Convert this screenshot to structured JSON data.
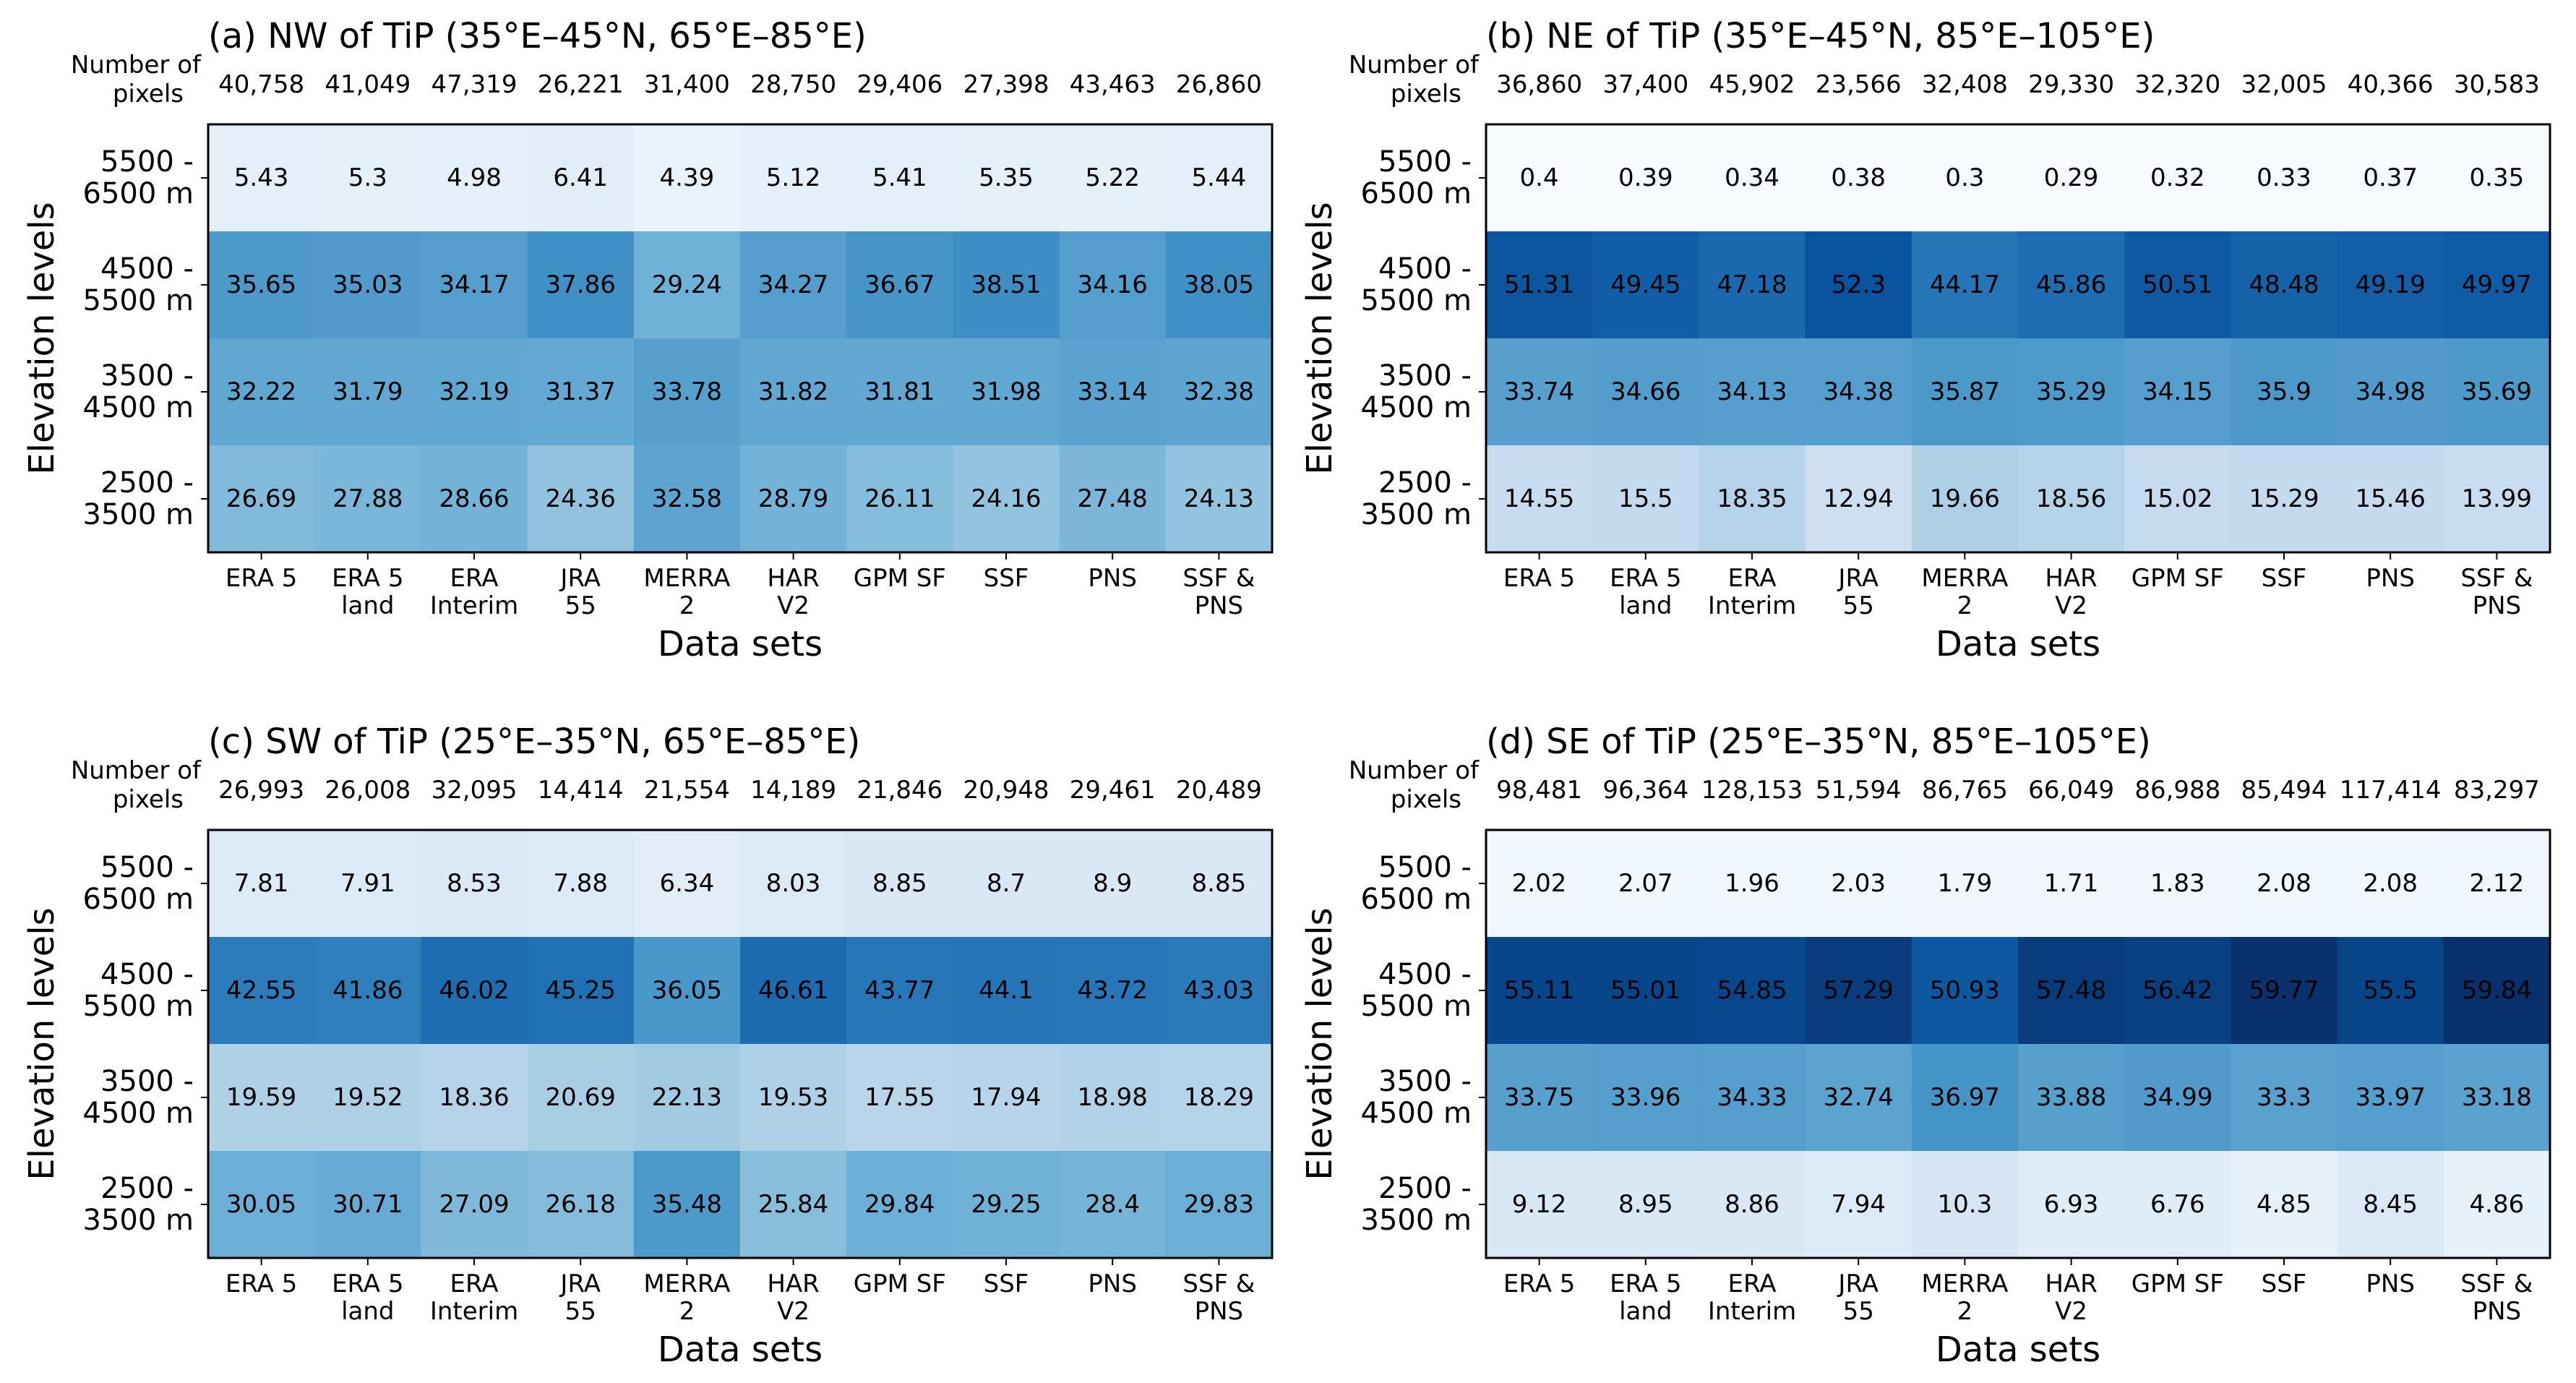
{
  "chart_data": [
    {
      "type": "heatmap",
      "title": "(a) NW of TiP (35°E–45°N, 65°E–85°E)",
      "xlabel": "Data sets",
      "ylabel": "Elevation levels",
      "pixels_label": [
        "Number of",
        "pixels"
      ],
      "categories": [
        [
          "ERA 5"
        ],
        [
          "ERA 5",
          "land"
        ],
        [
          "ERA",
          "Interim"
        ],
        [
          "JRA",
          "55"
        ],
        [
          "MERRA",
          "2"
        ],
        [
          "HAR",
          "V2"
        ],
        [
          "GPM SF"
        ],
        [
          "SSF"
        ],
        [
          "PNS"
        ],
        [
          "SSF &",
          "PNS"
        ]
      ],
      "rows": [
        [
          "5500 -",
          "6500 m"
        ],
        [
          "4500 -",
          "5500 m"
        ],
        [
          "3500 -",
          "4500 m"
        ],
        [
          "2500 -",
          "3500 m"
        ]
      ],
      "pixel_counts": [
        "40,758",
        "41,049",
        "47,319",
        "26,221",
        "31,400",
        "28,750",
        "29,406",
        "27,398",
        "43,463",
        "26,860"
      ],
      "values": [
        [
          5.43,
          5.3,
          4.98,
          6.41,
          4.39,
          5.12,
          5.41,
          5.35,
          5.22,
          5.44
        ],
        [
          35.65,
          35.03,
          34.17,
          37.86,
          29.24,
          34.27,
          36.67,
          38.51,
          34.16,
          38.05
        ],
        [
          32.22,
          31.79,
          32.19,
          31.37,
          33.78,
          31.82,
          31.81,
          31.98,
          33.14,
          32.38
        ],
        [
          26.69,
          27.88,
          28.66,
          24.36,
          32.58,
          28.79,
          26.11,
          24.16,
          27.48,
          24.13
        ]
      ],
      "colormap": "Blues",
      "vmin": 0,
      "vmax": 60
    },
    {
      "type": "heatmap",
      "title": "(b) NE of TiP (35°E–45°N, 85°E–105°E)",
      "xlabel": "Data sets",
      "ylabel": "Elevation levels",
      "pixels_label": [
        "Number of",
        "pixels"
      ],
      "categories": [
        [
          "ERA 5"
        ],
        [
          "ERA 5",
          "land"
        ],
        [
          "ERA",
          "Interim"
        ],
        [
          "JRA",
          "55"
        ],
        [
          "MERRA",
          "2"
        ],
        [
          "HAR",
          "V2"
        ],
        [
          "GPM SF"
        ],
        [
          "SSF"
        ],
        [
          "PNS"
        ],
        [
          "SSF &",
          "PNS"
        ]
      ],
      "rows": [
        [
          "5500 -",
          "6500 m"
        ],
        [
          "4500 -",
          "5500 m"
        ],
        [
          "3500 -",
          "4500 m"
        ],
        [
          "2500 -",
          "3500 m"
        ]
      ],
      "pixel_counts": [
        "36,860",
        "37,400",
        "45,902",
        "23,566",
        "32,408",
        "29,330",
        "32,320",
        "32,005",
        "40,366",
        "30,583"
      ],
      "values": [
        [
          0.4,
          0.39,
          0.34,
          0.38,
          0.3,
          0.29,
          0.32,
          0.33,
          0.37,
          0.35
        ],
        [
          51.31,
          49.45,
          47.18,
          52.3,
          44.17,
          45.86,
          50.51,
          48.48,
          49.19,
          49.97
        ],
        [
          33.74,
          34.66,
          34.13,
          34.38,
          35.87,
          35.29,
          34.15,
          35.9,
          34.98,
          35.69
        ],
        [
          14.55,
          15.5,
          18.35,
          12.94,
          19.66,
          18.56,
          15.02,
          15.29,
          15.46,
          13.99
        ]
      ],
      "colormap": "Blues",
      "vmin": 0,
      "vmax": 60
    },
    {
      "type": "heatmap",
      "title": "(c) SW of TiP (25°E–35°N, 65°E–85°E)",
      "xlabel": "Data sets",
      "ylabel": "Elevation levels",
      "pixels_label": [
        "Number of",
        "pixels"
      ],
      "categories": [
        [
          "ERA 5"
        ],
        [
          "ERA 5",
          "land"
        ],
        [
          "ERA",
          "Interim"
        ],
        [
          "JRA",
          "55"
        ],
        [
          "MERRA",
          "2"
        ],
        [
          "HAR",
          "V2"
        ],
        [
          "GPM SF"
        ],
        [
          "SSF"
        ],
        [
          "PNS"
        ],
        [
          "SSF &",
          "PNS"
        ]
      ],
      "rows": [
        [
          "5500 -",
          "6500 m"
        ],
        [
          "4500 -",
          "5500 m"
        ],
        [
          "3500 -",
          "4500 m"
        ],
        [
          "2500 -",
          "3500 m"
        ]
      ],
      "pixel_counts": [
        "26,993",
        "26,008",
        "32,095",
        "14,414",
        "21,554",
        "14,189",
        "21,846",
        "20,948",
        "29,461",
        "20,489"
      ],
      "values": [
        [
          7.81,
          7.91,
          8.53,
          7.88,
          6.34,
          8.03,
          8.85,
          8.7,
          8.9,
          8.85
        ],
        [
          42.55,
          41.86,
          46.02,
          45.25,
          36.05,
          46.61,
          43.77,
          44.1,
          43.72,
          43.03
        ],
        [
          19.59,
          19.52,
          18.36,
          20.69,
          22.13,
          19.53,
          17.55,
          17.94,
          18.98,
          18.29
        ],
        [
          30.05,
          30.71,
          27.09,
          26.18,
          35.48,
          25.84,
          29.84,
          29.25,
          28.4,
          29.83
        ]
      ],
      "colormap": "Blues",
      "vmin": 0,
      "vmax": 60
    },
    {
      "type": "heatmap",
      "title": "(d) SE of TiP (25°E–35°N, 85°E–105°E)",
      "xlabel": "Data sets",
      "ylabel": "Elevation levels",
      "pixels_label": [
        "Number of",
        "pixels"
      ],
      "categories": [
        [
          "ERA 5"
        ],
        [
          "ERA 5",
          "land"
        ],
        [
          "ERA",
          "Interim"
        ],
        [
          "JRA",
          "55"
        ],
        [
          "MERRA",
          "2"
        ],
        [
          "HAR",
          "V2"
        ],
        [
          "GPM SF"
        ],
        [
          "SSF"
        ],
        [
          "PNS"
        ],
        [
          "SSF &",
          "PNS"
        ]
      ],
      "rows": [
        [
          "5500 -",
          "6500 m"
        ],
        [
          "4500 -",
          "5500 m"
        ],
        [
          "3500 -",
          "4500 m"
        ],
        [
          "2500 -",
          "3500 m"
        ]
      ],
      "pixel_counts": [
        "98,481",
        "96,364",
        "128,153",
        "51,594",
        "86,765",
        "66,049",
        "86,988",
        "85,494",
        "117,414",
        "83,297"
      ],
      "values": [
        [
          2.02,
          2.07,
          1.96,
          2.03,
          1.79,
          1.71,
          1.83,
          2.08,
          2.08,
          2.12
        ],
        [
          55.11,
          55.01,
          54.85,
          57.29,
          50.93,
          57.48,
          56.42,
          59.77,
          55.5,
          59.84
        ],
        [
          33.75,
          33.96,
          34.33,
          32.74,
          36.97,
          33.88,
          34.99,
          33.3,
          33.97,
          33.18
        ],
        [
          9.12,
          8.95,
          8.86,
          7.94,
          10.3,
          6.93,
          6.76,
          4.85,
          8.45,
          4.86
        ]
      ],
      "colormap": "Blues",
      "vmin": 0,
      "vmax": 60
    }
  ]
}
